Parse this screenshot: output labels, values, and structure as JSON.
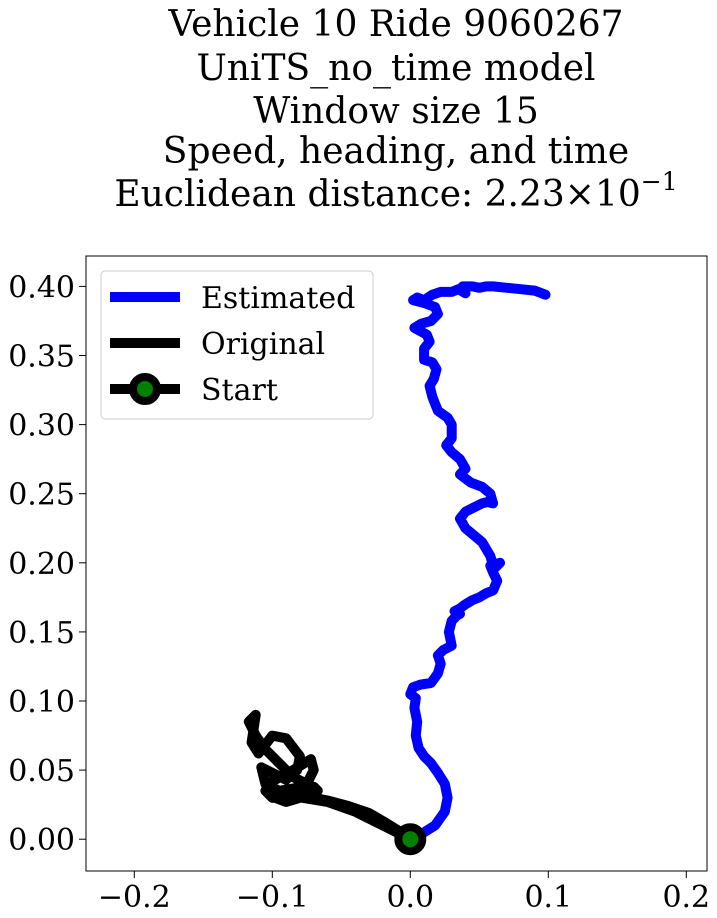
{
  "chart_data": {
    "type": "line",
    "title_lines": [
      "Vehicle 10 Ride 9060267",
      "UniTS_no_time model",
      "Window size 15",
      "Speed, heading, and time"
    ],
    "title_metric": {
      "prefix": "Euclidean distance: 2.23",
      "times": "×",
      "base": "10",
      "exponent": "−1"
    },
    "xlabel": "",
    "ylabel": "",
    "xlim": [
      -0.235,
      0.215
    ],
    "ylim": [
      -0.023,
      0.422
    ],
    "x_ticks": [
      -0.2,
      -0.1,
      0.0,
      0.1,
      0.2
    ],
    "x_tick_labels": [
      "−0.2",
      "−0.1",
      "0.0",
      "0.1",
      "0.2"
    ],
    "y_ticks": [
      0.0,
      0.05,
      0.1,
      0.15,
      0.2,
      0.25,
      0.3,
      0.35,
      0.4
    ],
    "y_tick_labels": [
      "0.00",
      "0.05",
      "0.10",
      "0.15",
      "0.20",
      "0.25",
      "0.30",
      "0.35",
      "0.40"
    ],
    "grid": false,
    "legend_position": "top-left",
    "legend": [
      {
        "label": "Estimated",
        "color": "#0000ff",
        "kind": "line"
      },
      {
        "label": "Original",
        "color": "#000000",
        "kind": "line"
      },
      {
        "label": "Start",
        "color": "#000000",
        "kind": "marker",
        "marker_fill": "#008000"
      }
    ],
    "series": [
      {
        "name": "Estimated",
        "color": "#0000ff",
        "x": [
          0.0,
          0.01,
          0.018,
          0.025,
          0.027,
          0.025,
          0.02,
          0.015,
          0.01,
          0.006,
          0.004,
          0.005,
          0.003,
          0.004,
          0.0,
          0.002,
          0.008,
          0.015,
          0.02,
          0.022,
          0.02,
          0.024,
          0.03,
          0.028,
          0.03,
          0.034,
          0.036,
          0.032,
          0.036,
          0.04,
          0.045,
          0.05,
          0.055,
          0.06,
          0.063,
          0.06,
          0.058,
          0.065,
          0.062,
          0.06,
          0.058,
          0.055,
          0.052,
          0.046,
          0.04,
          0.036,
          0.04,
          0.046,
          0.052,
          0.056,
          0.06,
          0.058,
          0.052,
          0.044,
          0.036,
          0.04,
          0.036,
          0.03,
          0.026,
          0.03,
          0.03,
          0.03,
          0.027,
          0.02,
          0.018,
          0.016,
          0.014,
          0.017,
          0.019,
          0.016,
          0.01,
          0.01,
          0.014,
          0.012,
          0.003,
          0.008,
          0.015,
          0.02,
          0.018,
          0.01,
          0.002,
          0.005,
          0.01,
          0.016,
          0.022,
          0.03,
          0.035,
          0.04,
          0.038,
          0.045,
          0.05,
          0.055,
          0.06,
          0.07,
          0.08,
          0.09,
          0.098
        ],
        "y": [
          0.0,
          0.005,
          0.01,
          0.02,
          0.03,
          0.04,
          0.048,
          0.055,
          0.06,
          0.066,
          0.075,
          0.085,
          0.095,
          0.102,
          0.105,
          0.11,
          0.112,
          0.113,
          0.12,
          0.127,
          0.133,
          0.137,
          0.14,
          0.15,
          0.158,
          0.162,
          0.163,
          0.165,
          0.167,
          0.17,
          0.173,
          0.175,
          0.178,
          0.18,
          0.187,
          0.193,
          0.198,
          0.2,
          0.197,
          0.198,
          0.205,
          0.21,
          0.215,
          0.22,
          0.225,
          0.232,
          0.237,
          0.24,
          0.243,
          0.244,
          0.243,
          0.25,
          0.255,
          0.258,
          0.264,
          0.268,
          0.275,
          0.28,
          0.285,
          0.29,
          0.295,
          0.3,
          0.305,
          0.31,
          0.315,
          0.32,
          0.328,
          0.333,
          0.34,
          0.345,
          0.347,
          0.355,
          0.36,
          0.365,
          0.37,
          0.373,
          0.375,
          0.38,
          0.385,
          0.388,
          0.39,
          0.392,
          0.39,
          0.394,
          0.396,
          0.396,
          0.398,
          0.395,
          0.4,
          0.4,
          0.399,
          0.4,
          0.4,
          0.399,
          0.398,
          0.397,
          0.394
        ]
      },
      {
        "name": "Original",
        "color": "#000000",
        "x": [
          0.0,
          -0.02,
          -0.04,
          -0.06,
          -0.078,
          -0.09,
          -0.1,
          -0.105,
          -0.1,
          -0.09,
          -0.08,
          -0.072,
          -0.07,
          -0.075,
          -0.085,
          -0.095,
          -0.105,
          -0.112,
          -0.117,
          -0.112,
          -0.115,
          -0.11,
          -0.1,
          -0.09,
          -0.08,
          -0.082,
          -0.09,
          -0.1,
          -0.108,
          -0.105,
          -0.095,
          -0.083,
          -0.07,
          -0.067,
          -0.08,
          -0.09,
          -0.098,
          -0.09,
          -0.08,
          -0.07,
          -0.06,
          -0.045,
          -0.03,
          -0.018,
          -0.005,
          0.0
        ],
        "y": [
          0.0,
          0.01,
          0.02,
          0.027,
          0.03,
          0.032,
          0.03,
          0.035,
          0.042,
          0.047,
          0.053,
          0.058,
          0.05,
          0.04,
          0.045,
          0.055,
          0.065,
          0.075,
          0.085,
          0.09,
          0.07,
          0.062,
          0.075,
          0.073,
          0.06,
          0.05,
          0.043,
          0.048,
          0.052,
          0.04,
          0.035,
          0.037,
          0.038,
          0.035,
          0.03,
          0.027,
          0.03,
          0.036,
          0.033,
          0.03,
          0.028,
          0.024,
          0.019,
          0.012,
          0.004,
          0.0
        ]
      }
    ],
    "start_point": {
      "x": 0.0,
      "y": 0.0,
      "edge_color": "#000000",
      "fill_color": "#008000"
    }
  }
}
